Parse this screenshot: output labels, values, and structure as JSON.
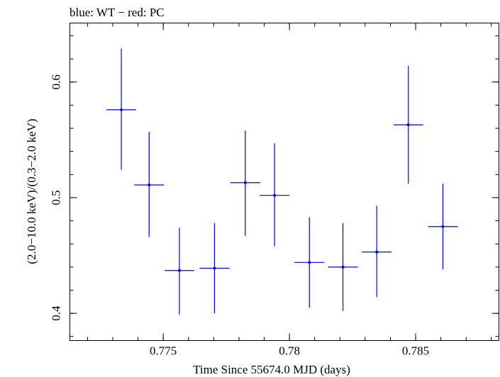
{
  "chart_data": {
    "type": "scatter",
    "title": "blue: WT − red: PC",
    "xlabel": "Time Since 55674.0 MJD (days)",
    "ylabel": "(2.0−10.0 keV)/(0.3−2.0 keV)",
    "xlim": [
      0.7713,
      0.7883
    ],
    "ylim": [
      0.3765,
      0.651
    ],
    "x_ticks": [
      {
        "value": 0.775,
        "label": "0.775"
      },
      {
        "value": 0.78,
        "label": "0.78"
      },
      {
        "value": 0.785,
        "label": "0.785"
      }
    ],
    "y_ticks": [
      {
        "value": 0.4,
        "label": "0.4"
      },
      {
        "value": 0.5,
        "label": "0.5"
      },
      {
        "value": 0.6,
        "label": "0.6"
      }
    ],
    "x_minor_step": 0.001,
    "y_minor_step": 0.02,
    "grid": false,
    "series": [
      {
        "color": "#0000ee",
        "points": [
          {
            "x": 0.77334,
            "xerr": 0.00059,
            "y": 0.576,
            "ylo": 0.524,
            "yhi": 0.629
          },
          {
            "x": 0.77444,
            "xerr": 0.00059,
            "y": 0.511,
            "ylo": 0.466,
            "yhi": 0.557
          },
          {
            "x": 0.77564,
            "xerr": 0.00059,
            "y": 0.437,
            "ylo": 0.399,
            "yhi": 0.474
          },
          {
            "x": 0.77703,
            "xerr": 0.00059,
            "y": 0.439,
            "ylo": 0.4,
            "yhi": 0.478
          },
          {
            "x": 0.77825,
            "xerr": 0.00059,
            "y": 0.513,
            "ylo": 0.467,
            "yhi": 0.558
          },
          {
            "x": 0.77941,
            "xerr": 0.00059,
            "y": 0.502,
            "ylo": 0.458,
            "yhi": 0.547
          },
          {
            "x": 0.78079,
            "xerr": 0.00059,
            "y": 0.444,
            "ylo": 0.405,
            "yhi": 0.483
          },
          {
            "x": 0.78212,
            "xerr": 0.00059,
            "y": 0.44,
            "ylo": 0.402,
            "yhi": 0.478
          },
          {
            "x": 0.78346,
            "xerr": 0.00059,
            "y": 0.453,
            "ylo": 0.414,
            "yhi": 0.493
          },
          {
            "x": 0.78471,
            "xerr": 0.00059,
            "y": 0.563,
            "ylo": 0.512,
            "yhi": 0.614
          },
          {
            "x": 0.78608,
            "xerr": 0.00059,
            "y": 0.475,
            "ylo": 0.438,
            "yhi": 0.512
          }
        ]
      }
    ]
  }
}
